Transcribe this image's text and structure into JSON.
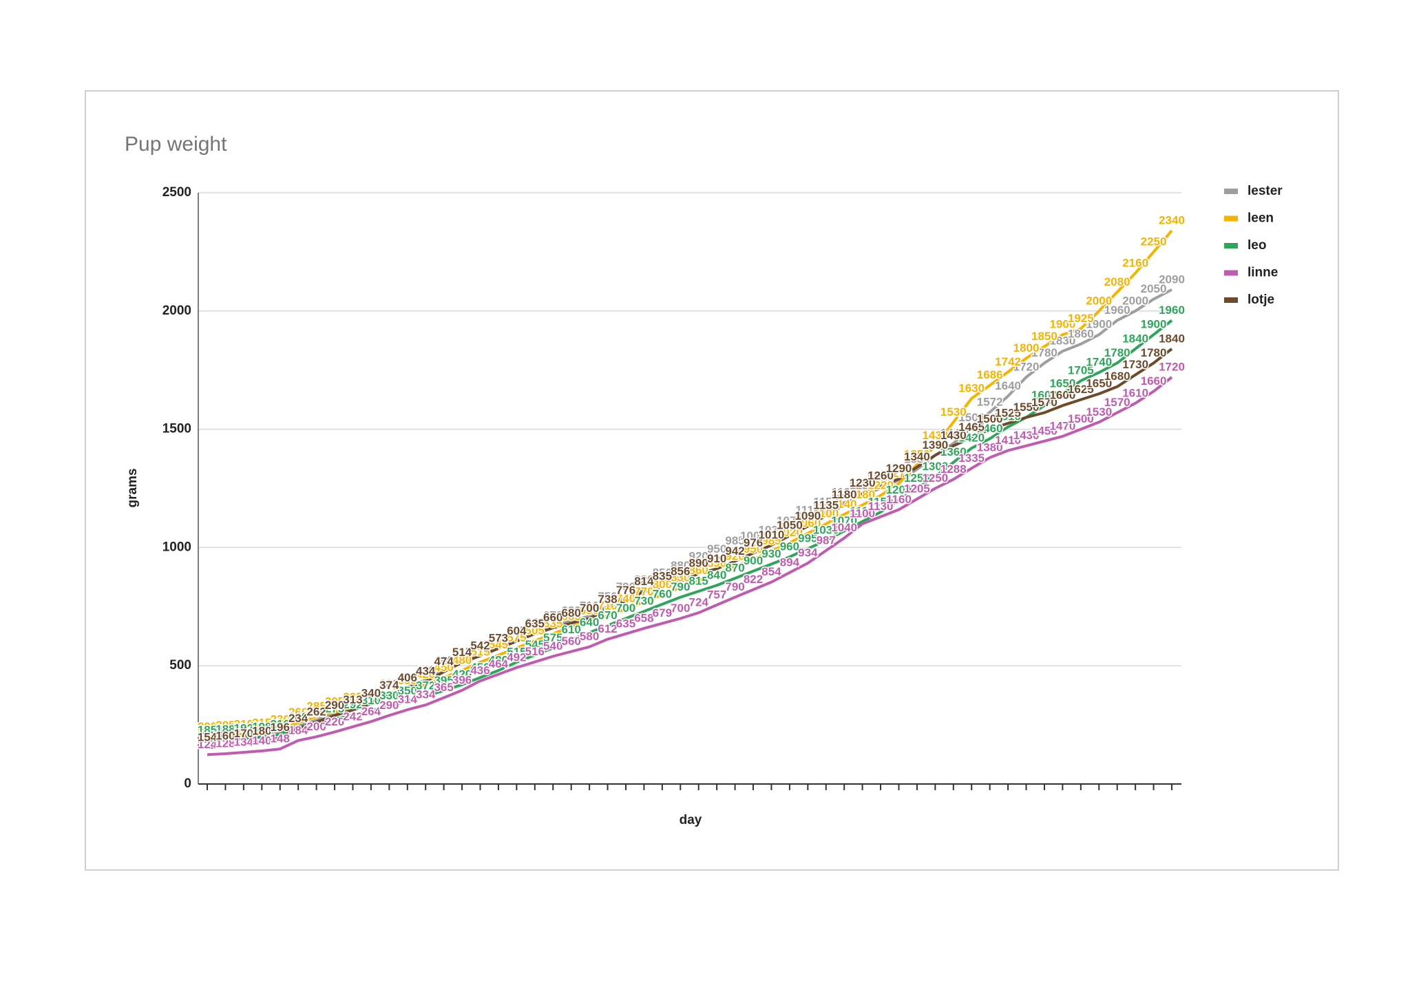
{
  "chart_data": {
    "type": "line",
    "title": "Pup weight",
    "x_label": "day",
    "y_label": "grams",
    "categories": [
      null,
      null,
      null,
      null,
      null,
      null,
      null,
      null,
      null,
      null,
      null,
      null,
      null,
      null,
      null,
      null,
      null,
      null,
      null,
      null,
      null,
      null,
      null,
      null,
      null,
      null,
      null,
      null,
      null,
      null,
      null,
      null,
      null,
      null,
      null,
      null,
      null,
      null,
      null,
      null,
      null,
      null,
      null,
      null,
      null,
      null,
      null,
      null,
      null,
      null,
      null,
      null,
      null,
      null
    ],
    "ylim": [
      0,
      2500
    ],
    "yticks": [
      0,
      500,
      1000,
      1500,
      2000,
      2500
    ],
    "grid": true,
    "legend": "right",
    "series": [
      {
        "name": "lester",
        "color": "#9e9e9e",
        "values": [
          190,
          195,
          200,
          205,
          215,
          245,
          270,
          300,
          320,
          345,
          380,
          410,
          440,
          480,
          515,
          545,
          575,
          605,
          640,
          670,
          690,
          710,
          750,
          790,
          820,
          850,
          880,
          920,
          950,
          985,
          1005,
          1030,
          1070,
          1115,
          1150,
          1190,
          1220,
          1250,
          1285,
          1330,
          1390,
          1440,
          1506,
          1572,
          1640,
          1720,
          1780,
          1830,
          1860,
          1900,
          1960,
          2000,
          2050,
          2090
        ]
      },
      {
        "name": "leen",
        "color": "#f4b400",
        "values": [
          200,
          205,
          210,
          215,
          230,
          260,
          285,
          305,
          325,
          345,
          370,
          395,
          420,
          450,
          480,
          515,
          545,
          575,
          605,
          635,
          665,
          690,
          710,
          740,
          770,
          800,
          830,
          860,
          890,
          920,
          950,
          985,
          1020,
          1060,
          1100,
          1140,
          1180,
          1220,
          1270,
          1350,
          1430,
          1530,
          1630,
          1686,
          1742,
          1800,
          1850,
          1900,
          1925,
          2000,
          2080,
          2160,
          2250,
          2340
        ]
      },
      {
        "name": "leo",
        "color": "#2ea55a",
        "values": [
          185,
          188,
          192,
          198,
          210,
          240,
          258,
          275,
          292,
          310,
          330,
          350,
          372,
          395,
          420,
          450,
          480,
          515,
          545,
          575,
          610,
          640,
          670,
          700,
          730,
          760,
          790,
          815,
          840,
          870,
          900,
          930,
          960,
          995,
          1030,
          1070,
          1110,
          1150,
          1200,
          1250,
          1300,
          1360,
          1420,
          1460,
          1510,
          1550,
          1600,
          1650,
          1705,
          1740,
          1780,
          1840,
          1900,
          1960
        ]
      },
      {
        "name": "linne",
        "color": "#c05cb0",
        "values": [
          124,
          128,
          134,
          140,
          148,
          184,
          200,
          220,
          242,
          264,
          290,
          314,
          334,
          365,
          396,
          436,
          464,
          492,
          516,
          540,
          560,
          580,
          612,
          635,
          658,
          679,
          700,
          724,
          757,
          790,
          822,
          854,
          894,
          934,
          987,
          1040,
          1100,
          1130,
          1160,
          1205,
          1250,
          1288,
          1335,
          1380,
          1410,
          1430,
          1450,
          1470,
          1500,
          1530,
          1570,
          1610,
          1660,
          1720
        ]
      },
      {
        "name": "lotje",
        "color": "#6d4a2c",
        "values": [
          154,
          160,
          170,
          180,
          196,
          234,
          262,
          290,
          313,
          340,
          374,
          406,
          434,
          474,
          514,
          542,
          573,
          604,
          635,
          660,
          680,
          700,
          738,
          776,
          814,
          835,
          856,
          890,
          910,
          942,
          976,
          1010,
          1050,
          1090,
          1135,
          1180,
          1230,
          1260,
          1290,
          1340,
          1390,
          1430,
          1465,
          1500,
          1525,
          1550,
          1570,
          1600,
          1625,
          1650,
          1680,
          1730,
          1780,
          1840
        ]
      }
    ]
  }
}
